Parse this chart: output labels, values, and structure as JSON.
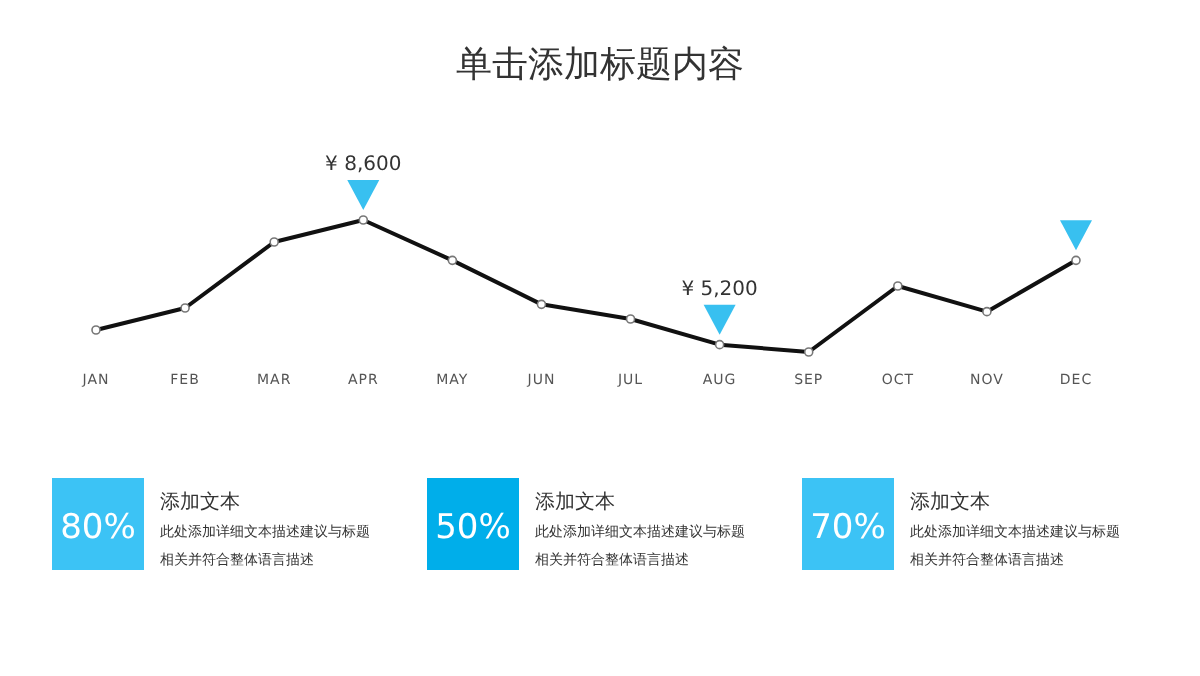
{
  "chart_data": [
    {
      "type": "line",
      "title": "单击添加标题内容",
      "categories": [
        "JAN",
        "FEB",
        "MAR",
        "APR",
        "MAY",
        "JUN",
        "JUL",
        "AUG",
        "SEP",
        "OCT",
        "NOV",
        "DEC"
      ],
      "series": [
        {
          "type": "line",
          "color": "#111111",
          "marker": "circle",
          "values": [
            5600,
            6200,
            8000,
            8600,
            7500,
            6300,
            5900,
            5200,
            5000,
            6800,
            6100,
            7500
          ],
          "value_labels": [
            null,
            null,
            null,
            "¥ 8,600",
            null,
            null,
            null,
            "¥ 5,200",
            null,
            null,
            null,
            null
          ]
        }
      ]
    },
    {
      "type": "other",
      "categories": [
        "添加文本",
        "添加文本",
        "添加文本"
      ],
      "colors": [
        "#3cc3f5",
        "#00aeea",
        "#3cc3f5"
      ],
      "annotations": [
        "80%",
        "此处添加详细文本描述建议与标题相关并符合整体语言描述",
        "50%",
        "此处添加详细文本描述建议与标题相关并符合整体语言描述",
        "70%",
        "此处添加详细文本描述建议与标题相关并符合整体语言描述"
      ]
    }
  ]
}
